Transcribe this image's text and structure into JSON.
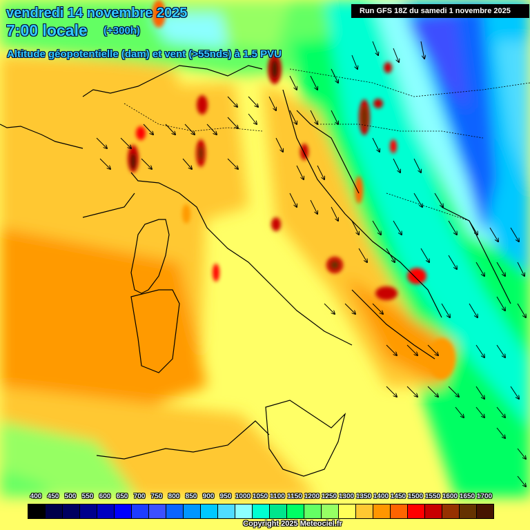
{
  "header": {
    "date": "vendredi 14 novembre 2025",
    "time": "7:00 locale",
    "lead": "(+300h)",
    "subtitle": "Altitude géopotentielle (dam) et vent (>55nds) à 1.5 PVU",
    "run": "Run GFS 18Z du samedi 1 novembre 2025"
  },
  "legend": {
    "labels": [
      "400",
      "450",
      "500",
      "550",
      "600",
      "650",
      "700",
      "750",
      "800",
      "850",
      "900",
      "950",
      "1000",
      "1050",
      "1100",
      "1150",
      "1200",
      "1250",
      "1300",
      "1350",
      "1400",
      "1450",
      "1500",
      "1550",
      "1600",
      "1650",
      "1700"
    ],
    "colors": [
      "#000000",
      "#00004a",
      "#000060",
      "#00008c",
      "#0000c0",
      "#0000ff",
      "#1e3cff",
      "#3c50ff",
      "#0a64ff",
      "#0096ff",
      "#00c8ff",
      "#50dcff",
      "#8cffff",
      "#00ffd2",
      "#00e68c",
      "#00ff64",
      "#64ff64",
      "#96ff64",
      "#ffff5a",
      "#ffc832",
      "#ff9600",
      "#ff6400",
      "#ff0000",
      "#c80000",
      "#963200",
      "#643200",
      "#461400"
    ]
  },
  "footer": {
    "copyright": "Copyright 2025 Meteociel.fr"
  },
  "map": {
    "region": "Italy, Adriatic, Balkans, Western Mediterranean",
    "field": "geopotential height at 1.5 PVU (dam)",
    "wind_threshold": ">55nds"
  }
}
